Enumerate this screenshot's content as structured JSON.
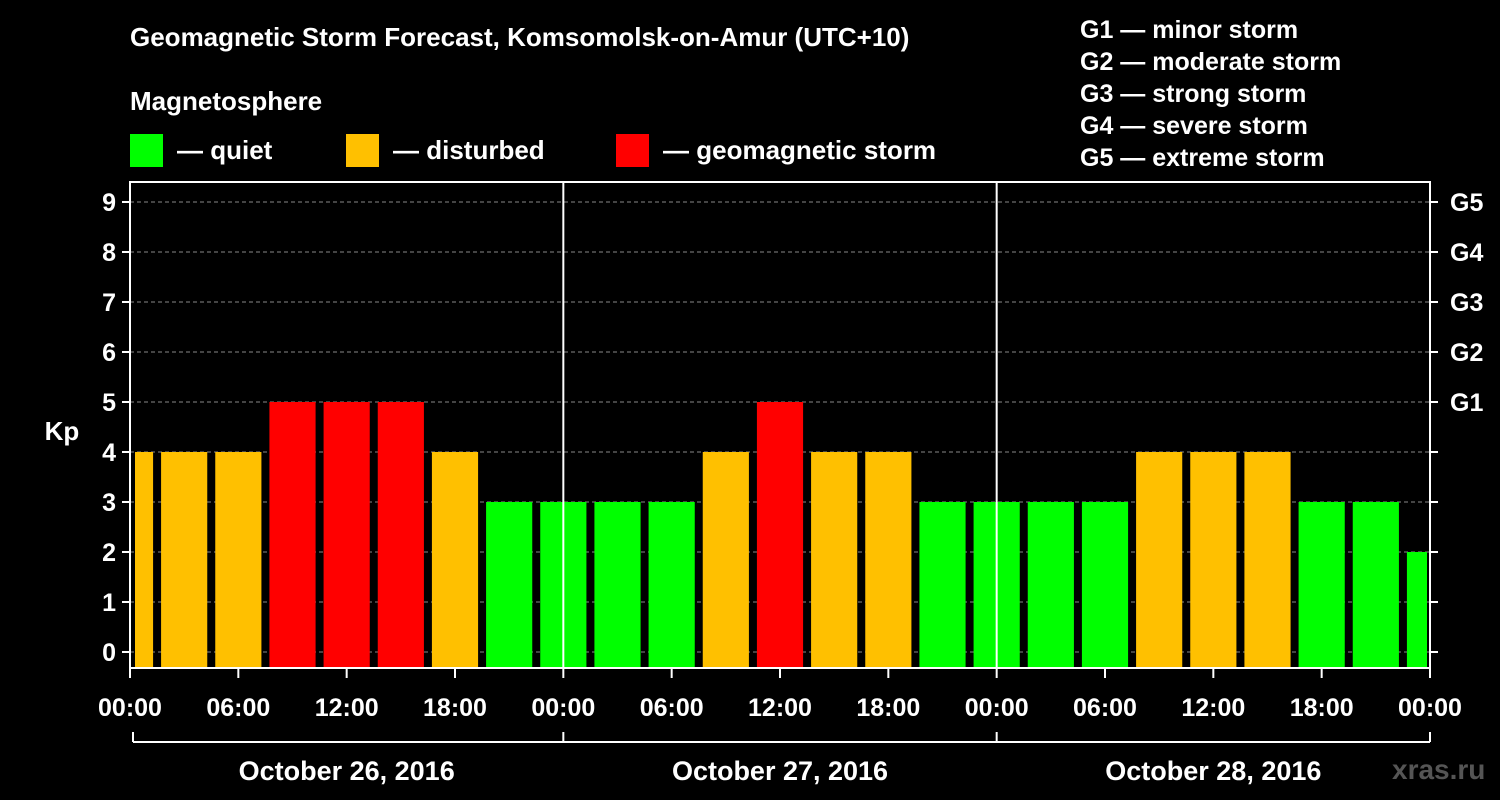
{
  "chart_data": {
    "type": "bar",
    "title": "Geomagnetic Storm Forecast, Komsomolsk-on-Amur (UTC+10)",
    "subtitle": "Magnetosphere",
    "ylabel": "Kp",
    "ylim": [
      0,
      9
    ],
    "yticks": [
      "0",
      "1",
      "2",
      "3",
      "4",
      "5",
      "6",
      "7",
      "8",
      "9"
    ],
    "right_ticks": [
      {
        "kp": 5,
        "label": "G1"
      },
      {
        "kp": 6,
        "label": "G2"
      },
      {
        "kp": 7,
        "label": "G3"
      },
      {
        "kp": 8,
        "label": "G4"
      },
      {
        "kp": 9,
        "label": "G5"
      }
    ],
    "x_tick_labels": [
      "00:00",
      "06:00",
      "12:00",
      "18:00",
      "00:00",
      "06:00",
      "12:00",
      "18:00",
      "00:00",
      "06:00",
      "12:00",
      "18:00",
      "00:00"
    ],
    "days": [
      "October 26, 2016",
      "October 27, 2016",
      "October 28, 2016"
    ],
    "values": [
      4,
      4,
      4,
      5,
      5,
      5,
      4,
      3,
      3,
      3,
      3,
      4,
      5,
      4,
      4,
      3,
      3,
      3,
      3,
      4,
      4,
      4,
      3,
      3,
      2
    ],
    "bar_status": [
      "disturbed",
      "disturbed",
      "disturbed",
      "storm",
      "storm",
      "storm",
      "disturbed",
      "quiet",
      "quiet",
      "quiet",
      "quiet",
      "disturbed",
      "storm",
      "disturbed",
      "disturbed",
      "quiet",
      "quiet",
      "quiet",
      "quiet",
      "disturbed",
      "disturbed",
      "disturbed",
      "quiet",
      "quiet",
      "quiet"
    ],
    "colors": {
      "quiet": "#00ff00",
      "disturbed": "#ffc000",
      "storm": "#ff0000"
    },
    "grid": true
  },
  "legend": {
    "quiet": "— quiet",
    "disturbed": "— disturbed",
    "storm": "— geomagnetic storm"
  },
  "storm_scale": [
    "G1 — minor storm",
    "G2 — moderate storm",
    "G3 — strong storm",
    "G4 — severe storm",
    "G5 — extreme storm"
  ],
  "watermark": "xras.ru"
}
